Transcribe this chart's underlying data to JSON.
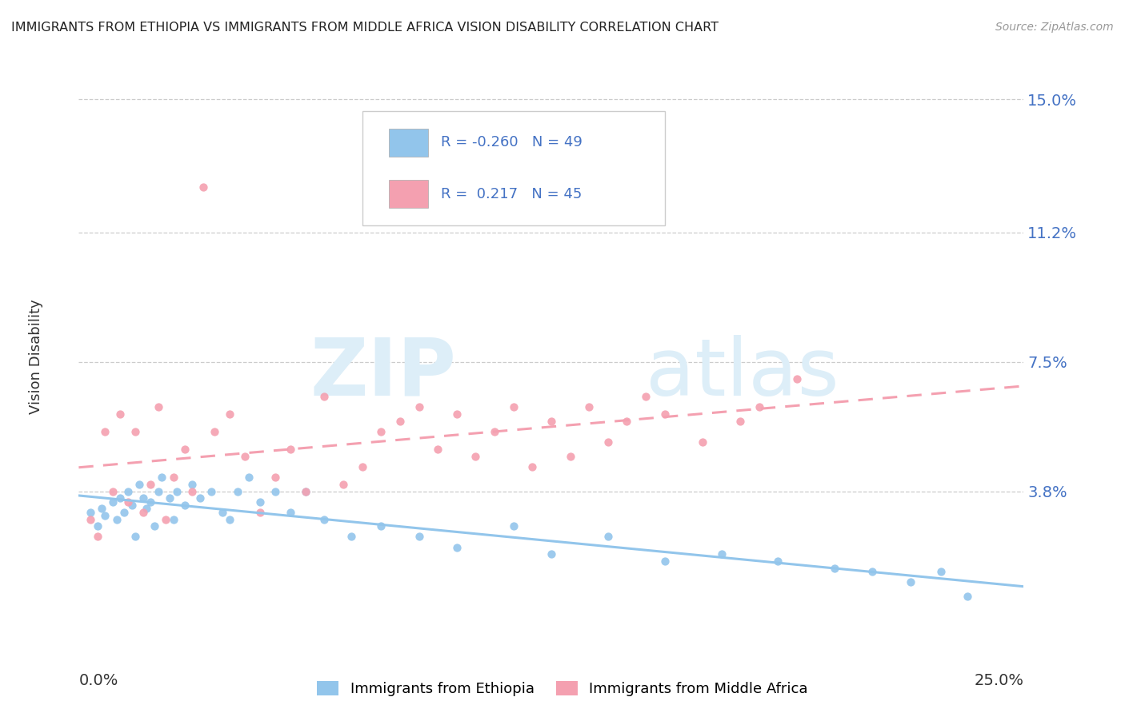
{
  "title": "IMMIGRANTS FROM ETHIOPIA VS IMMIGRANTS FROM MIDDLE AFRICA VISION DISABILITY CORRELATION CHART",
  "source": "Source: ZipAtlas.com",
  "ylabel": "Vision Disability",
  "x_range": [
    0.0,
    0.25
  ],
  "y_range": [
    -0.005,
    0.158
  ],
  "y_ticks": [
    0.038,
    0.075,
    0.112,
    0.15
  ],
  "y_tick_labels": [
    "3.8%",
    "7.5%",
    "11.2%",
    "15.0%"
  ],
  "r_ethiopia": -0.26,
  "n_ethiopia": 49,
  "r_middle_africa": 0.217,
  "n_middle_africa": 45,
  "color_ethiopia": "#92c5eb",
  "color_middle_africa": "#f4a0b0",
  "watermark_color": "#ddeef8",
  "title_color": "#222222",
  "source_color": "#999999",
  "axis_label_color": "#4472c4",
  "grid_color": "#cccccc",
  "ethiopia_x": [
    0.003,
    0.005,
    0.006,
    0.007,
    0.009,
    0.01,
    0.011,
    0.012,
    0.013,
    0.014,
    0.015,
    0.016,
    0.017,
    0.018,
    0.019,
    0.02,
    0.021,
    0.022,
    0.024,
    0.025,
    0.026,
    0.028,
    0.03,
    0.032,
    0.035,
    0.038,
    0.04,
    0.042,
    0.045,
    0.048,
    0.052,
    0.056,
    0.06,
    0.065,
    0.072,
    0.08,
    0.09,
    0.1,
    0.115,
    0.125,
    0.14,
    0.155,
    0.17,
    0.185,
    0.2,
    0.21,
    0.22,
    0.228,
    0.235
  ],
  "ethiopia_y": [
    0.032,
    0.028,
    0.033,
    0.031,
    0.035,
    0.03,
    0.036,
    0.032,
    0.038,
    0.034,
    0.025,
    0.04,
    0.036,
    0.033,
    0.035,
    0.028,
    0.038,
    0.042,
    0.036,
    0.03,
    0.038,
    0.034,
    0.04,
    0.036,
    0.038,
    0.032,
    0.03,
    0.038,
    0.042,
    0.035,
    0.038,
    0.032,
    0.038,
    0.03,
    0.025,
    0.028,
    0.025,
    0.022,
    0.028,
    0.02,
    0.025,
    0.018,
    0.02,
    0.018,
    0.016,
    0.015,
    0.012,
    0.015,
    0.008
  ],
  "middle_africa_x": [
    0.003,
    0.005,
    0.007,
    0.009,
    0.011,
    0.013,
    0.015,
    0.017,
    0.019,
    0.021,
    0.023,
    0.025,
    0.028,
    0.03,
    0.033,
    0.036,
    0.04,
    0.044,
    0.048,
    0.052,
    0.056,
    0.06,
    0.065,
    0.07,
    0.075,
    0.08,
    0.085,
    0.09,
    0.095,
    0.1,
    0.105,
    0.11,
    0.115,
    0.12,
    0.125,
    0.13,
    0.135,
    0.14,
    0.145,
    0.15,
    0.155,
    0.165,
    0.175,
    0.18,
    0.19
  ],
  "middle_africa_y": [
    0.03,
    0.025,
    0.055,
    0.038,
    0.06,
    0.035,
    0.055,
    0.032,
    0.04,
    0.062,
    0.03,
    0.042,
    0.05,
    0.038,
    0.125,
    0.055,
    0.06,
    0.048,
    0.032,
    0.042,
    0.05,
    0.038,
    0.065,
    0.04,
    0.045,
    0.055,
    0.058,
    0.062,
    0.05,
    0.06,
    0.048,
    0.055,
    0.062,
    0.045,
    0.058,
    0.048,
    0.062,
    0.052,
    0.058,
    0.065,
    0.06,
    0.052,
    0.058,
    0.062,
    0.07
  ]
}
